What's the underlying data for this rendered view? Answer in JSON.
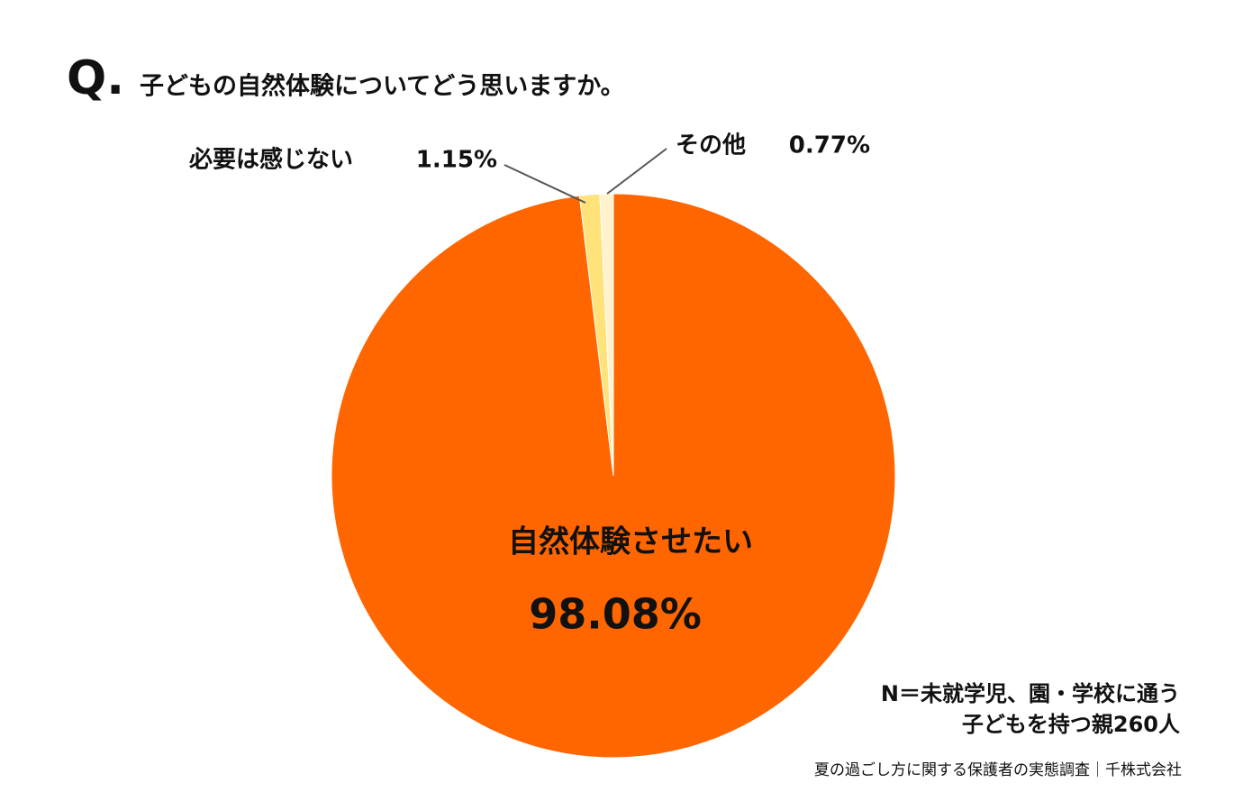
{
  "chart_data": {
    "type": "pie",
    "prefix": "Q.",
    "title": "子どもの自然体験についてどう思いますか。",
    "categories": [
      "自然体験させたい",
      "必要は感じない",
      "その他"
    ],
    "values": [
      98.08,
      1.15,
      0.77
    ],
    "value_labels": [
      "98.08%",
      "1.15%",
      "0.77%"
    ],
    "colors": [
      "#ff6600",
      "#ffe27a",
      "#fff2cc"
    ],
    "note": [
      "N＝未就学児、園・学校に通う",
      "子どもを持つ親260人"
    ],
    "source": "夏の過ごし方に関する保護者の実態調査｜千株式会社"
  }
}
